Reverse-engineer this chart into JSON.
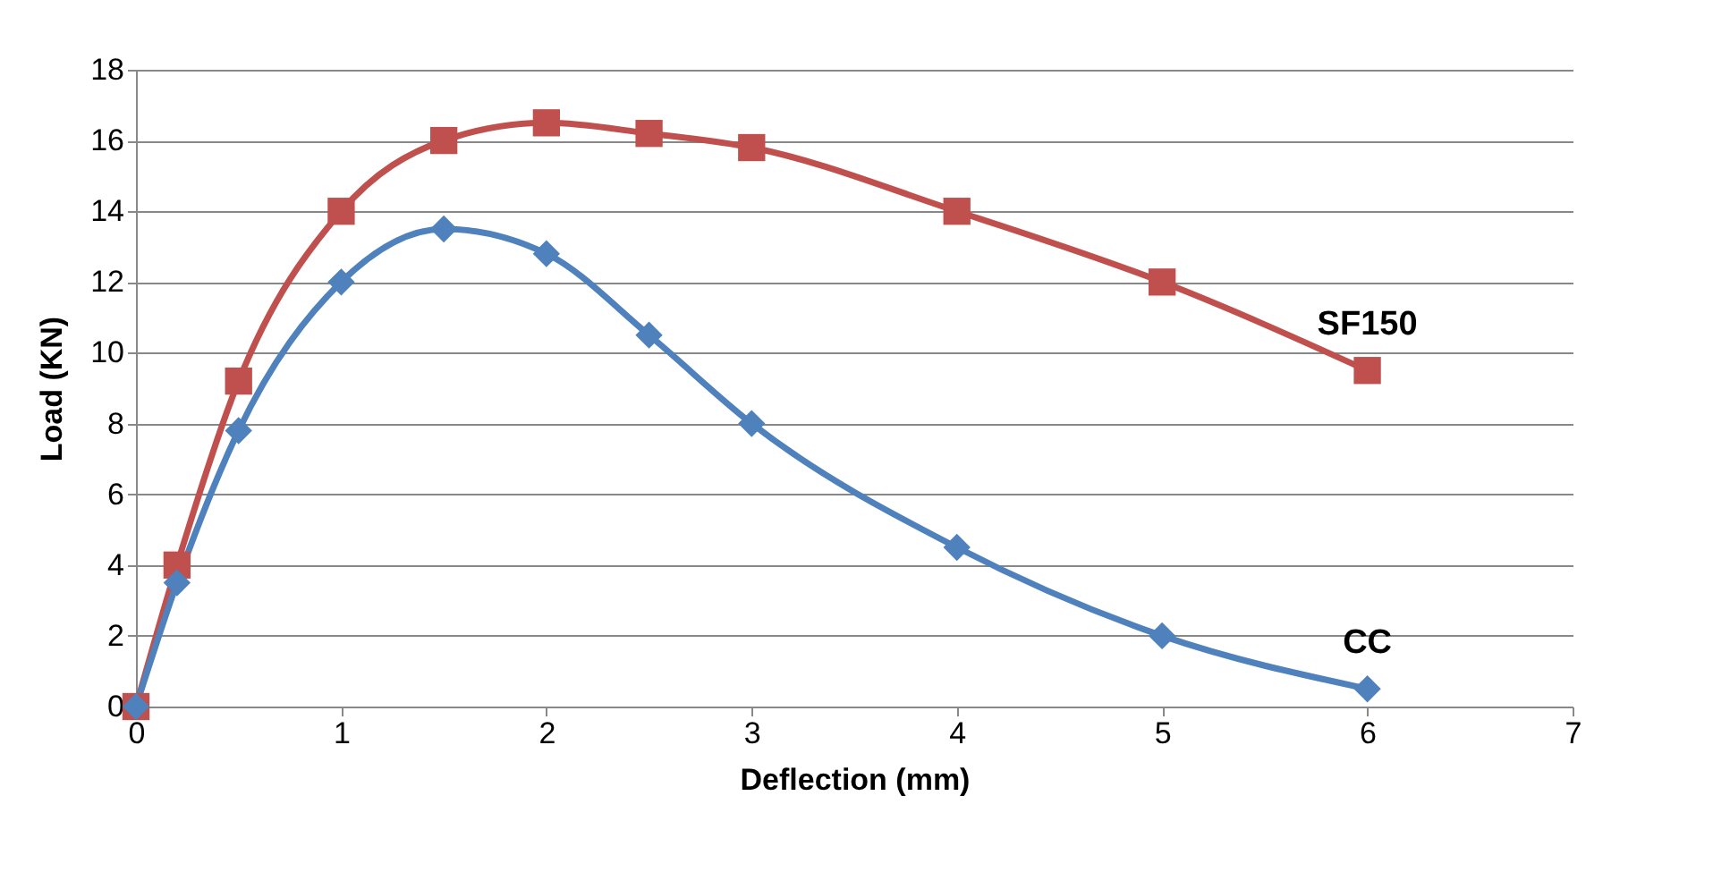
{
  "chart_data": {
    "type": "line",
    "xlabel": "Deflection (mm)",
    "ylabel": "Load (KN)",
    "x": [
      0,
      0.2,
      0.5,
      1,
      1.5,
      2,
      2.5,
      3,
      4,
      5,
      6
    ],
    "series": [
      {
        "name": "SF150",
        "color": "#c0504d",
        "marker": "square",
        "values": [
          0,
          4,
          9.2,
          14,
          16,
          16.5,
          16.2,
          15.8,
          14,
          12,
          9.5
        ]
      },
      {
        "name": "CC",
        "color": "#4f81bd",
        "marker": "diamond",
        "values": [
          0,
          3.5,
          7.8,
          12,
          13.5,
          12.8,
          10.5,
          8,
          4.5,
          2,
          0.5
        ]
      }
    ],
    "xlim": [
      0,
      7
    ],
    "xticks": [
      0,
      1,
      2,
      3,
      4,
      5,
      6,
      7
    ],
    "ylim": [
      0,
      18
    ],
    "yticks": [
      0,
      2,
      4,
      6,
      8,
      10,
      12,
      14,
      16,
      18
    ],
    "grid": "y",
    "legend": false
  }
}
